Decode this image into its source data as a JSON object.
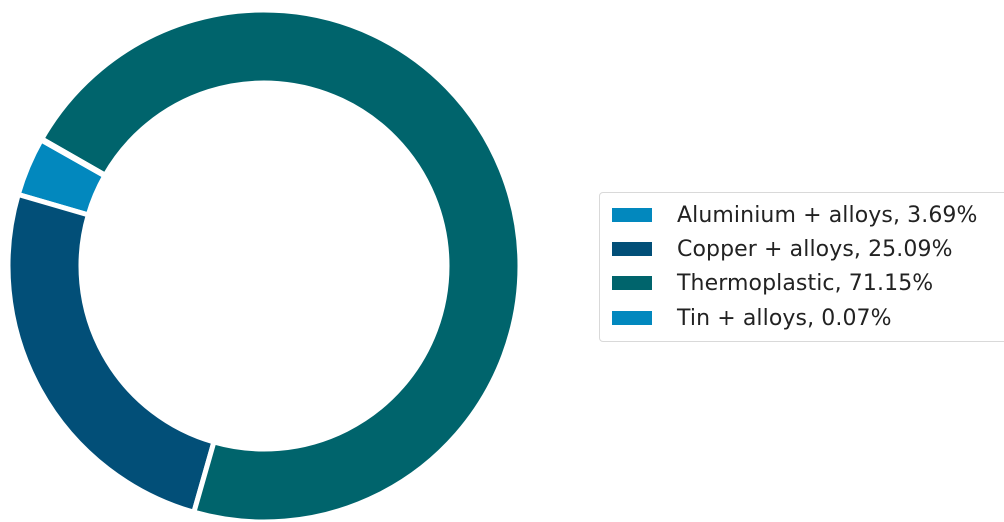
{
  "chart_data": {
    "type": "pie",
    "donut": true,
    "series": [
      {
        "label": "Aluminium + alloys, 3.69%",
        "value": 3.69,
        "color": "#0288be"
      },
      {
        "label": "Copper + alloys, 25.09%",
        "value": 25.09,
        "color": "#024f78"
      },
      {
        "label": "Thermoplastic, 71.15%",
        "value": 71.15,
        "color": "#00646c"
      },
      {
        "label": "Tin + alloys, 0.07%",
        "value": 0.07,
        "color": "#0288be"
      }
    ],
    "legend_position": "right"
  }
}
